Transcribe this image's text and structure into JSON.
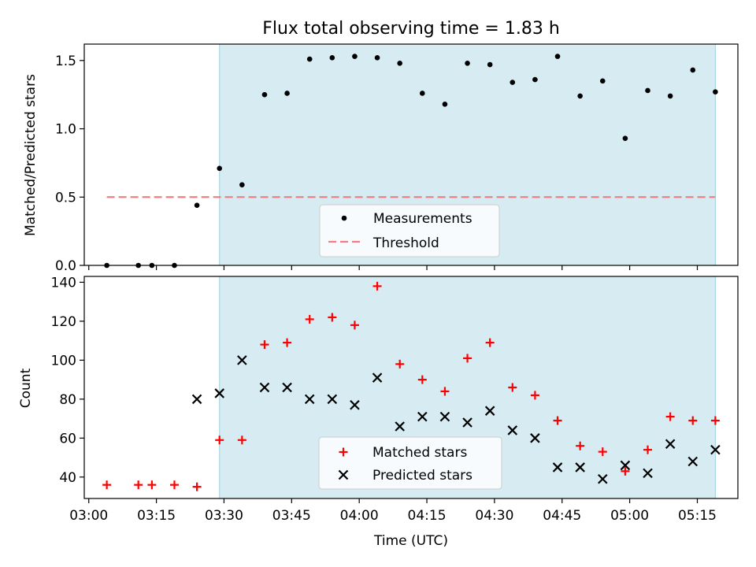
{
  "figure": {
    "title": "Flux total observing time = 1.83 h",
    "xlabel": "Time (UTC)"
  },
  "chart_data": [
    {
      "type": "scatter",
      "panel": "top",
      "ylabel": "Matched/Predicted stars",
      "xlim": [
        "02:59",
        "05:24"
      ],
      "ylim": [
        0,
        1.62
      ],
      "yticks": [
        "0.0",
        "0.5",
        "1.0",
        "1.5"
      ],
      "ytick_values": [
        0,
        0.5,
        1.0,
        1.5
      ],
      "x_tick_values": [
        "03:00",
        "03:15",
        "03:30",
        "03:45",
        "04:00",
        "04:15",
        "04:30",
        "04:45",
        "05:00",
        "05:15"
      ],
      "shaded_span": [
        "03:29",
        "05:19"
      ],
      "threshold": {
        "value": 0.5,
        "x_range": [
          "03:04",
          "05:19"
        ]
      },
      "series": [
        {
          "name": "Measurements",
          "x": [
            "03:04",
            "03:11",
            "03:14",
            "03:19",
            "03:24",
            "03:29",
            "03:34",
            "03:39",
            "03:44",
            "03:49",
            "03:54",
            "03:59",
            "04:04",
            "04:09",
            "04:14",
            "04:19",
            "04:24",
            "04:29",
            "04:34",
            "04:39",
            "04:44",
            "04:49",
            "04:54",
            "04:59",
            "05:04",
            "05:09",
            "05:14",
            "05:19"
          ],
          "values": [
            0,
            0,
            0,
            0,
            0.44,
            0.71,
            0.59,
            1.25,
            1.26,
            1.51,
            1.52,
            1.53,
            1.52,
            1.48,
            1.26,
            1.18,
            1.48,
            1.47,
            1.34,
            1.36,
            1.53,
            1.24,
            1.35,
            0.93,
            1.28,
            1.24,
            1.43,
            1.27
          ]
        },
        {
          "name": "Threshold",
          "values": [
            0.5
          ]
        }
      ],
      "legend": {
        "placement": "lower-center",
        "labels": [
          "Measurements",
          "Threshold"
        ]
      },
      "colors": {
        "points": "#000000",
        "threshold": "#f08080",
        "shade": "#add8e6"
      }
    },
    {
      "type": "scatter",
      "panel": "bottom",
      "ylabel": "Count",
      "xlabel": "Time (UTC)",
      "xlim": [
        "02:59",
        "05:24"
      ],
      "ylim": [
        29,
        143
      ],
      "yticks": [
        "40",
        "60",
        "80",
        "100",
        "120",
        "140"
      ],
      "ytick_values": [
        40,
        60,
        80,
        100,
        120,
        140
      ],
      "xticks": [
        "03:00",
        "03:15",
        "03:30",
        "03:45",
        "04:00",
        "04:15",
        "04:30",
        "04:45",
        "05:00",
        "05:15"
      ],
      "shaded_span": [
        "03:29",
        "05:19"
      ],
      "series": [
        {
          "name": "Matched stars",
          "marker": "+",
          "x": [
            "03:04",
            "03:11",
            "03:14",
            "03:19",
            "03:24",
            "03:29",
            "03:34",
            "03:39",
            "03:44",
            "03:49",
            "03:54",
            "03:59",
            "04:04",
            "04:09",
            "04:14",
            "04:19",
            "04:24",
            "04:29",
            "04:34",
            "04:39",
            "04:44",
            "04:49",
            "04:54",
            "04:59",
            "05:04",
            "05:09",
            "05:14",
            "05:19"
          ],
          "values": [
            36,
            36,
            36,
            36,
            35,
            59,
            59,
            108,
            109,
            121,
            122,
            118,
            138,
            98,
            90,
            84,
            101,
            109,
            86,
            82,
            69,
            56,
            53,
            43,
            54,
            71,
            69,
            69
          ]
        },
        {
          "name": "Predicted stars",
          "marker": "x",
          "x": [
            "03:24",
            "03:29",
            "03:34",
            "03:39",
            "03:44",
            "03:49",
            "03:54",
            "03:59",
            "04:04",
            "04:09",
            "04:14",
            "04:19",
            "04:24",
            "04:29",
            "04:34",
            "04:39",
            "04:44",
            "04:49",
            "04:54",
            "04:59",
            "05:04",
            "05:09",
            "05:14",
            "05:19"
          ],
          "values": [
            80,
            83,
            100,
            86,
            86,
            80,
            80,
            77,
            91,
            66,
            71,
            71,
            68,
            74,
            64,
            60,
            45,
            45,
            39,
            46,
            42,
            57,
            48,
            54
          ]
        }
      ],
      "legend": {
        "placement": "lower-center",
        "labels": [
          "Matched stars",
          "Predicted stars"
        ]
      },
      "colors": {
        "matched": "#ff0000",
        "predicted": "#000000",
        "shade": "#add8e6"
      }
    }
  ]
}
